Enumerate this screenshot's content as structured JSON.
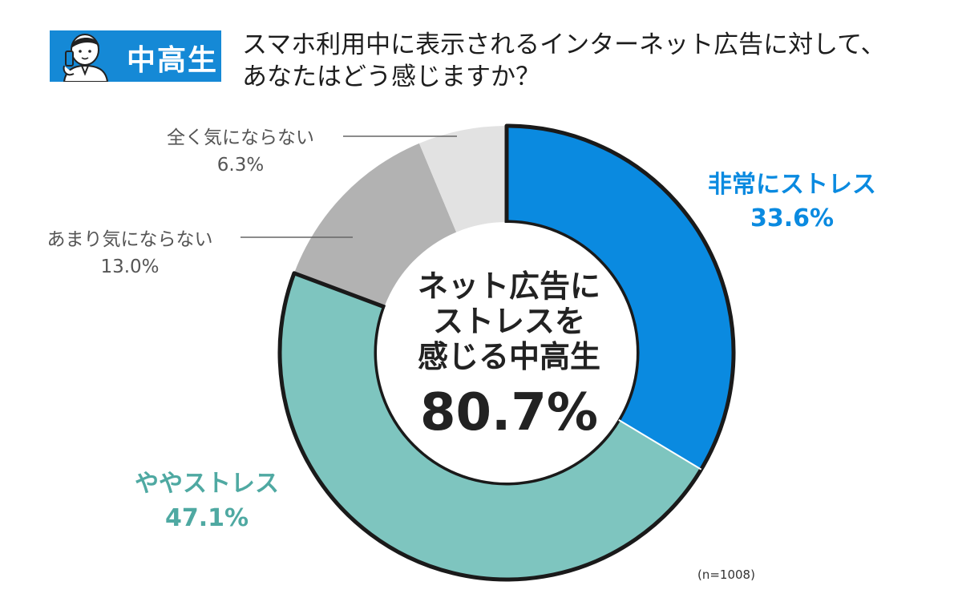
{
  "badge": {
    "label": "中高生",
    "icon": "student-with-phone-icon"
  },
  "question": "スマホ利用中に表示されるインターネット広告に対して、\nあなたはどう感じますか？",
  "center": {
    "lines": [
      "ネット広告に",
      "ストレスを",
      "感じる中高生"
    ],
    "value": "80.7%"
  },
  "sample_size": "(n=1008)",
  "chart_data": {
    "type": "pie",
    "donut": true,
    "categories": [
      "非常にストレス",
      "ややストレス",
      "あまり気にならない",
      "全く気にならない"
    ],
    "values": [
      33.6,
      47.1,
      13.0,
      6.3
    ],
    "value_labels": [
      "33.6%",
      "47.1%",
      "13.0%",
      "6.3%"
    ],
    "colors": [
      "#0a8ae0",
      "#7ec5bf",
      "#b2b2b2",
      "#e2e2e2"
    ],
    "label_colors": [
      "#0a8ae0",
      "#4fa9a2",
      "#555555",
      "#555555"
    ]
  }
}
